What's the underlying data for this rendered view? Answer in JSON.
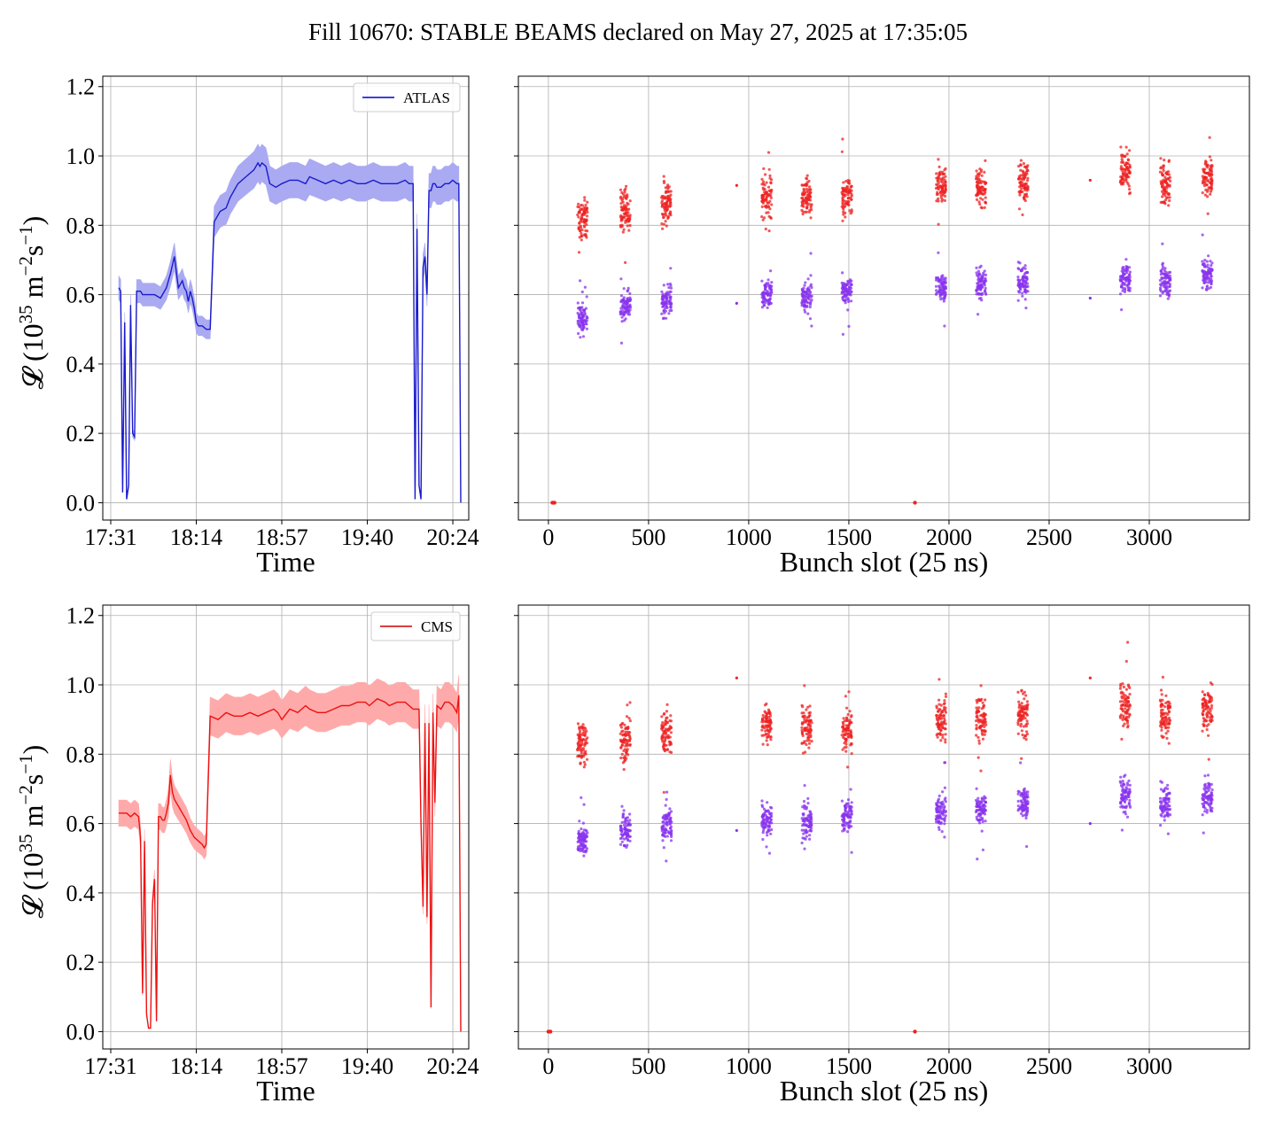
{
  "figure_title": "Fill 10670: STABLE BEAMS declared on May 27, 2025 at 17:35:05",
  "chart_data": [
    {
      "type": "line",
      "panel": "top-left",
      "title": "",
      "xlabel": "Time",
      "ylabel_parts": {
        "prefix": "𝓛 (10",
        "exp1": "35",
        "mid": " m",
        "exp2": "−2",
        "mid2": "s",
        "exp3": "−1",
        "suffix": ")"
      },
      "xlim": [
        -4,
        180
      ],
      "ylim": [
        -0.05,
        1.23
      ],
      "xticks": [
        0,
        43,
        86,
        129,
        172
      ],
      "xticklabels": [
        "17:31",
        "18:14",
        "18:57",
        "19:40",
        "20:24"
      ],
      "yticks": [
        0.0,
        0.2,
        0.4,
        0.6,
        0.8,
        1.0,
        1.2
      ],
      "yticklabels": [
        "0.0",
        "0.2",
        "0.4",
        "0.6",
        "0.8",
        "1.0",
        "1.2"
      ],
      "grid": true,
      "legend": {
        "placement": "top-right",
        "entries": [
          {
            "label": "ATLAS",
            "color": "#0000cc"
          }
        ]
      },
      "band_color": "#aaaaf2",
      "line_color": "#1a1acc",
      "series": [
        {
          "name": "ATLAS",
          "x": [
            4,
            5,
            6,
            7,
            8,
            9,
            10,
            11,
            12,
            13,
            14,
            15,
            16,
            17,
            18,
            20,
            22,
            25,
            28,
            30,
            32,
            34,
            36,
            37,
            38,
            39,
            40,
            41,
            42,
            43,
            44,
            45,
            46,
            48,
            50,
            52,
            55,
            58,
            60,
            62,
            64,
            66,
            68,
            70,
            72,
            74,
            75,
            76,
            78,
            80,
            83,
            86,
            90,
            94,
            98,
            100,
            104,
            108,
            112,
            116,
            120,
            124,
            128,
            132,
            136,
            140,
            144,
            148,
            150,
            151,
            152,
            153,
            154,
            155,
            156,
            157,
            158,
            159,
            160,
            161,
            162,
            163,
            164,
            166,
            168,
            170,
            172,
            174,
            175,
            176
          ],
          "y": [
            0.62,
            0.61,
            0.03,
            0.52,
            0.01,
            0.05,
            0.57,
            0.2,
            0.19,
            0.61,
            0.61,
            0.61,
            0.6,
            0.6,
            0.6,
            0.6,
            0.6,
            0.59,
            0.62,
            0.66,
            0.71,
            0.62,
            0.64,
            0.62,
            0.61,
            0.58,
            0.61,
            0.59,
            0.56,
            0.52,
            0.51,
            0.51,
            0.51,
            0.5,
            0.5,
            0.81,
            0.84,
            0.85,
            0.88,
            0.9,
            0.92,
            0.93,
            0.94,
            0.95,
            0.96,
            0.98,
            0.97,
            0.98,
            0.97,
            0.92,
            0.91,
            0.92,
            0.93,
            0.93,
            0.92,
            0.94,
            0.93,
            0.92,
            0.93,
            0.92,
            0.93,
            0.92,
            0.92,
            0.93,
            0.92,
            0.92,
            0.92,
            0.93,
            0.92,
            0.92,
            0.92,
            0.01,
            0.79,
            0.05,
            0.01,
            0.68,
            0.71,
            0.6,
            0.9,
            0.9,
            0.92,
            0.92,
            0.91,
            0.91,
            0.92,
            0.92,
            0.93,
            0.92,
            0.92,
            0.0
          ],
          "band_half_width": 0.055
        }
      ]
    },
    {
      "type": "scatter",
      "panel": "top-right",
      "title": "",
      "xlabel": "Bunch slot (25 ns)",
      "xlim": [
        -150,
        3500
      ],
      "ylim": [
        -0.05,
        1.23
      ],
      "xticks": [
        0,
        500,
        1000,
        1500,
        2000,
        2500,
        3000
      ],
      "xticklabels": [
        "0",
        "500",
        "1000",
        "1500",
        "2000",
        "2500",
        "3000"
      ],
      "yticks": [
        0.0,
        0.2,
        0.4,
        0.6,
        0.8,
        1.0,
        1.2
      ],
      "grid": true,
      "train_centers": [
        170,
        385,
        590,
        1090,
        1290,
        1490,
        1960,
        2160,
        2370,
        2880,
        3080,
        3290
      ],
      "train_width": 50,
      "series": [
        {
          "name": "",
          "color": "#ee2222",
          "train_means": [
            0.82,
            0.84,
            0.86,
            0.88,
            0.88,
            0.88,
            0.91,
            0.91,
            0.92,
            0.96,
            0.92,
            0.94
          ],
          "spread": 0.045
        },
        {
          "name": "",
          "color": "#8833ee",
          "train_means": [
            0.53,
            0.57,
            0.58,
            0.6,
            0.6,
            0.61,
            0.62,
            0.63,
            0.64,
            0.65,
            0.64,
            0.66
          ],
          "spread": 0.035
        }
      ],
      "isolated_points": [
        {
          "x": 20,
          "y": 0.0,
          "color": "#ee2222"
        },
        {
          "x": 30,
          "y": 0.0,
          "color": "#ee2222"
        },
        {
          "x": 1830,
          "y": 0.0,
          "color": "#ee2222"
        },
        {
          "x": 940,
          "y": 0.915,
          "color": "#ee2222"
        },
        {
          "x": 940,
          "y": 0.575,
          "color": "#8833ee"
        },
        {
          "x": 2705,
          "y": 0.93,
          "color": "#ee2222"
        },
        {
          "x": 2705,
          "y": 0.59,
          "color": "#8833ee"
        }
      ]
    },
    {
      "type": "line",
      "panel": "bottom-left",
      "title": "",
      "xlabel": "Time",
      "ylabel_parts": {
        "prefix": "𝓛 (10",
        "exp1": "35",
        "mid": " m",
        "exp2": "−2",
        "mid2": "s",
        "exp3": "−1",
        "suffix": ")"
      },
      "xlim": [
        -4,
        180
      ],
      "ylim": [
        -0.05,
        1.23
      ],
      "xticks": [
        0,
        43,
        86,
        129,
        172
      ],
      "xticklabels": [
        "17:31",
        "18:14",
        "18:57",
        "19:40",
        "20:24"
      ],
      "yticks": [
        0.0,
        0.2,
        0.4,
        0.6,
        0.8,
        1.0,
        1.2
      ],
      "yticklabels": [
        "0.0",
        "0.2",
        "0.4",
        "0.6",
        "0.8",
        "1.0",
        "1.2"
      ],
      "grid": true,
      "legend": {
        "placement": "top-right",
        "entries": [
          {
            "label": "CMS",
            "color": "#cc0000"
          }
        ]
      },
      "band_color": "#ffaaaa",
      "line_color": "#ee1111",
      "series": [
        {
          "name": "CMS",
          "x": [
            4,
            6,
            8,
            10,
            12,
            14,
            15,
            16,
            17,
            18,
            19,
            20,
            21,
            22,
            23,
            24,
            25,
            26,
            27,
            28,
            29,
            30,
            31,
            32,
            34,
            36,
            38,
            40,
            42,
            44,
            46,
            47,
            48,
            50,
            54,
            58,
            62,
            66,
            70,
            74,
            78,
            82,
            84,
            86,
            90,
            94,
            98,
            100,
            104,
            108,
            112,
            116,
            120,
            124,
            128,
            130,
            134,
            138,
            140,
            144,
            148,
            152,
            155,
            156,
            157,
            158,
            159,
            160,
            161,
            162,
            163,
            164,
            166,
            168,
            170,
            172,
            173,
            174,
            175,
            176
          ],
          "y": [
            0.63,
            0.63,
            0.63,
            0.62,
            0.63,
            0.62,
            0.56,
            0.11,
            0.55,
            0.05,
            0.01,
            0.01,
            0.37,
            0.44,
            0.03,
            0.62,
            0.62,
            0.61,
            0.61,
            0.63,
            0.66,
            0.74,
            0.69,
            0.67,
            0.65,
            0.63,
            0.61,
            0.58,
            0.56,
            0.55,
            0.54,
            0.53,
            0.54,
            0.91,
            0.9,
            0.92,
            0.91,
            0.91,
            0.92,
            0.91,
            0.92,
            0.93,
            0.92,
            0.9,
            0.93,
            0.92,
            0.94,
            0.93,
            0.92,
            0.92,
            0.93,
            0.94,
            0.94,
            0.95,
            0.95,
            0.94,
            0.96,
            0.95,
            0.94,
            0.95,
            0.95,
            0.93,
            0.93,
            0.6,
            0.36,
            0.89,
            0.33,
            0.89,
            0.07,
            0.92,
            0.66,
            0.94,
            0.93,
            0.95,
            0.95,
            0.94,
            0.93,
            0.92,
            0.97,
            0.0
          ],
          "band_half_width": 0.06
        }
      ]
    },
    {
      "type": "scatter",
      "panel": "bottom-right",
      "title": "",
      "xlabel": "Bunch slot (25 ns)",
      "xlim": [
        -150,
        3500
      ],
      "ylim": [
        -0.05,
        1.23
      ],
      "xticks": [
        0,
        500,
        1000,
        1500,
        2000,
        2500,
        3000
      ],
      "xticklabels": [
        "0",
        "500",
        "1000",
        "1500",
        "2000",
        "2500",
        "3000"
      ],
      "yticks": [
        0.0,
        0.2,
        0.4,
        0.6,
        0.8,
        1.0,
        1.2
      ],
      "grid": true,
      "train_centers": [
        170,
        385,
        590,
        1090,
        1290,
        1490,
        1960,
        2160,
        2370,
        2880,
        3080,
        3290
      ],
      "train_width": 50,
      "series": [
        {
          "name": "",
          "color": "#ee2222",
          "train_means": [
            0.83,
            0.84,
            0.86,
            0.89,
            0.88,
            0.87,
            0.9,
            0.9,
            0.91,
            0.94,
            0.91,
            0.93
          ],
          "spread": 0.05
        },
        {
          "name": "",
          "color": "#8833ee",
          "train_means": [
            0.55,
            0.58,
            0.6,
            0.61,
            0.61,
            0.62,
            0.64,
            0.64,
            0.66,
            0.68,
            0.66,
            0.68
          ],
          "spread": 0.04
        }
      ],
      "isolated_points": [
        {
          "x": 0,
          "y": 0.0,
          "color": "#ee2222"
        },
        {
          "x": 10,
          "y": 0.0,
          "color": "#ee2222"
        },
        {
          "x": 1830,
          "y": 0.0,
          "color": "#ee2222"
        },
        {
          "x": 940,
          "y": 1.02,
          "color": "#ee2222"
        },
        {
          "x": 940,
          "y": 0.58,
          "color": "#8833ee"
        },
        {
          "x": 2705,
          "y": 1.02,
          "color": "#ee2222"
        },
        {
          "x": 2705,
          "y": 0.6,
          "color": "#8833ee"
        }
      ]
    }
  ]
}
